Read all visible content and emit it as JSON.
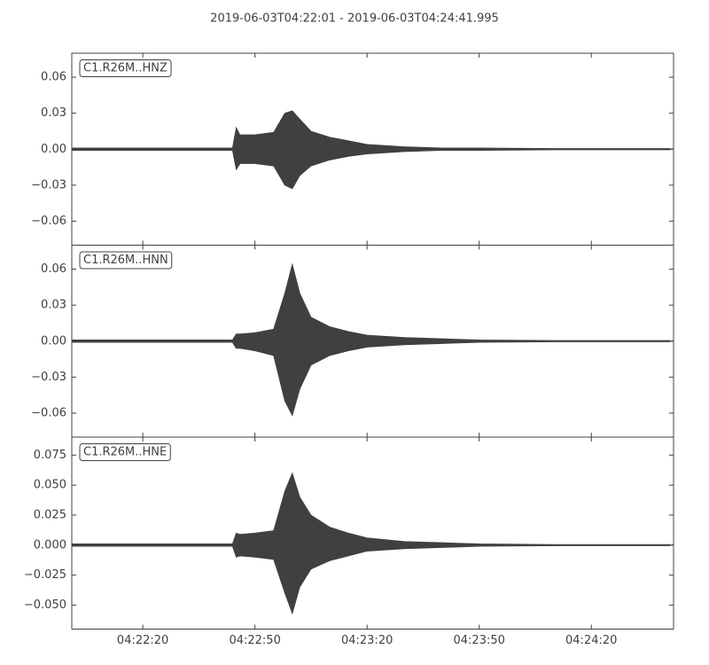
{
  "title": "2019-06-03T04:22:01  -  2019-06-03T04:24:41.995",
  "chart_data": [
    {
      "type": "area",
      "label": "C1.R26M..HNZ",
      "x": [
        "04:22:01",
        "04:22:44",
        "04:22:45",
        "04:22:46",
        "04:22:50",
        "04:22:55",
        "04:22:58",
        "04:23:00",
        "04:23:02",
        "04:23:05",
        "04:23:10",
        "04:23:15",
        "04:23:20",
        "04:23:30",
        "04:23:40",
        "04:23:50",
        "04:24:10",
        "04:24:41"
      ],
      "xlim": [
        "04:22:01",
        "04:24:42"
      ],
      "ylim": [
        -0.08,
        0.08
      ],
      "yticks": [
        0.06,
        0.03,
        {
          "value": 0,
          "label": "0.00"
        },
        {
          "value": -0.03,
          "label": "−0.03"
        },
        {
          "value": -0.06,
          "label": "−0.06"
        }
      ],
      "series": [
        {
          "color": "#404040",
          "values": [
            0.001,
            0.001,
            0.018,
            0.012,
            0.012,
            0.014,
            0.03,
            0.032,
            0.025,
            0.015,
            0.01,
            0.007,
            0.004,
            0.002,
            0.001,
            0.001,
            0.0005,
            0.0005
          ]
        },
        {
          "color": "#404040",
          "values": [
            -0.001,
            -0.001,
            -0.017,
            -0.012,
            -0.012,
            -0.014,
            -0.03,
            -0.033,
            -0.022,
            -0.014,
            -0.009,
            -0.006,
            -0.004,
            -0.002,
            -0.001,
            -0.001,
            -0.0005,
            -0.0005
          ]
        }
      ]
    },
    {
      "type": "area",
      "label": "C1.R26M..HNN",
      "x": [
        "04:22:01",
        "04:22:44",
        "04:22:45",
        "04:22:46",
        "04:22:50",
        "04:22:55",
        "04:22:58",
        "04:23:00",
        "04:23:02",
        "04:23:05",
        "04:23:10",
        "04:23:15",
        "04:23:20",
        "04:23:30",
        "04:23:40",
        "04:23:50",
        "04:24:10",
        "04:24:41"
      ],
      "xlim": [
        "04:22:01",
        "04:24:42"
      ],
      "ylim": [
        -0.08,
        0.08
      ],
      "yticks": [
        0.06,
        0.03,
        {
          "value": 0,
          "label": "0.00"
        },
        {
          "value": -0.03,
          "label": "−0.03"
        },
        {
          "value": -0.06,
          "label": "−0.06"
        }
      ],
      "series": [
        {
          "color": "#404040",
          "values": [
            0.001,
            0.001,
            0.006,
            0.006,
            0.007,
            0.01,
            0.04,
            0.064,
            0.04,
            0.02,
            0.012,
            0.008,
            0.005,
            0.003,
            0.002,
            0.001,
            0.0005,
            0.0005
          ]
        },
        {
          "color": "#404040",
          "values": [
            -0.001,
            -0.001,
            -0.006,
            -0.006,
            -0.008,
            -0.012,
            -0.05,
            -0.062,
            -0.04,
            -0.02,
            -0.012,
            -0.008,
            -0.005,
            -0.003,
            -0.002,
            -0.001,
            -0.0005,
            -0.0005
          ]
        }
      ]
    },
    {
      "type": "area",
      "label": "C1.R26M..HNE",
      "x": [
        "04:22:01",
        "04:22:44",
        "04:22:45",
        "04:22:46",
        "04:22:50",
        "04:22:55",
        "04:22:58",
        "04:23:00",
        "04:23:02",
        "04:23:05",
        "04:23:10",
        "04:23:15",
        "04:23:20",
        "04:23:30",
        "04:23:40",
        "04:23:50",
        "04:24:10",
        "04:24:41"
      ],
      "xlim": [
        "04:22:01",
        "04:24:42"
      ],
      "xticks": [
        "04:22:20",
        "04:22:50",
        "04:23:20",
        "04:23:50",
        "04:24:20"
      ],
      "ylim": [
        -0.07,
        0.09
      ],
      "yticks": [
        0.075,
        {
          "value": 0.05,
          "label": "0.050"
        },
        0.025,
        {
          "value": 0,
          "label": "0.000"
        },
        {
          "value": -0.025,
          "label": "−0.025"
        },
        {
          "value": -0.05,
          "label": "−0.050"
        }
      ],
      "series": [
        {
          "color": "#404040",
          "values": [
            0.001,
            0.001,
            0.01,
            0.009,
            0.01,
            0.012,
            0.045,
            0.06,
            0.04,
            0.025,
            0.015,
            0.01,
            0.006,
            0.003,
            0.002,
            0.001,
            0.0005,
            0.0005
          ]
        },
        {
          "color": "#404040",
          "values": [
            -0.001,
            -0.001,
            -0.01,
            -0.009,
            -0.01,
            -0.012,
            -0.04,
            -0.057,
            -0.035,
            -0.02,
            -0.013,
            -0.009,
            -0.005,
            -0.003,
            -0.002,
            -0.001,
            -0.0005,
            -0.0005
          ]
        }
      ]
    }
  ]
}
